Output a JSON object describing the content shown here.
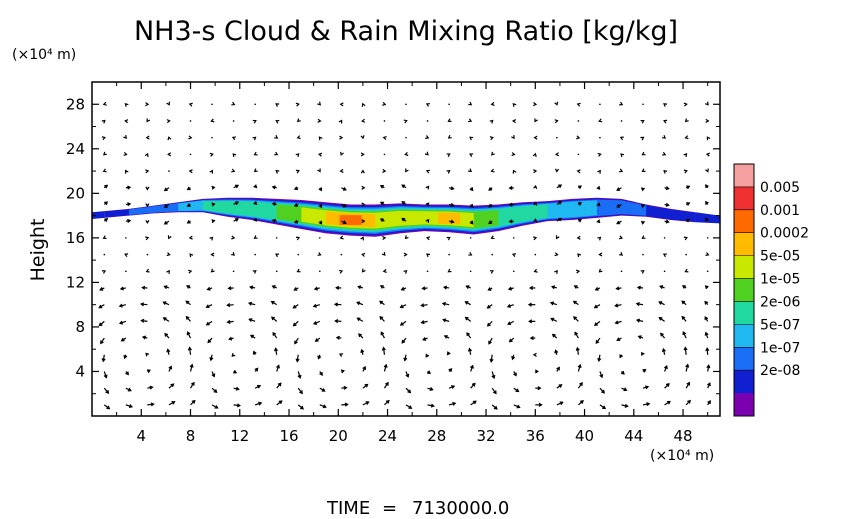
{
  "chart_data": {
    "type": "heatmap",
    "title": "NH3-s Cloud & Rain Mixing Ratio [kg/kg]",
    "ylabel": "Height",
    "x_unit": "(×10⁴ m)",
    "y_unit": "(×10⁴ m)",
    "xlim": [
      0,
      51
    ],
    "ylim": [
      0,
      30
    ],
    "x_ticks": [
      4,
      8,
      12,
      16,
      20,
      24,
      28,
      32,
      36,
      40,
      44,
      48
    ],
    "y_ticks": [
      4,
      8,
      12,
      16,
      20,
      24,
      28
    ],
    "colorbar": {
      "levels": [
        "0.005",
        "0.001",
        "0.0002",
        "5e-05",
        "1e-05",
        "2e-06",
        "5e-07",
        "1e-07",
        "2e-08"
      ],
      "colors": [
        "#f4a0a0",
        "#ee3030",
        "#ff6a00",
        "#ffbb00",
        "#c8e800",
        "#50d020",
        "#20d8a0",
        "#20b8f0",
        "#1a6ef5",
        "#1020d0",
        "#7a00b0"
      ]
    },
    "cloud_layer": {
      "x": [
        1,
        3,
        5,
        7,
        9,
        11,
        13,
        15,
        17,
        19,
        21,
        23,
        25,
        27,
        29,
        31,
        33,
        35,
        37,
        39,
        41,
        43,
        45,
        47,
        49
      ],
      "base_height": [
        17.8,
        18.0,
        18.2,
        18.3,
        18.3,
        17.9,
        17.6,
        17.2,
        16.8,
        16.4,
        16.2,
        16.1,
        16.4,
        16.6,
        16.5,
        16.3,
        16.6,
        17.1,
        17.5,
        17.6,
        17.8,
        18.0,
        17.9,
        17.6,
        17.4
      ],
      "top_height": [
        18.4,
        18.6,
        18.9,
        19.2,
        19.5,
        19.6,
        19.6,
        19.5,
        19.4,
        19.2,
        19.0,
        19.0,
        19.1,
        19.0,
        19.0,
        18.9,
        19.0,
        19.2,
        19.3,
        19.5,
        19.6,
        19.5,
        19.0,
        18.6,
        18.3
      ],
      "max_level_index": [
        9,
        8,
        8,
        7,
        6,
        6,
        6,
        5,
        4,
        3,
        2,
        3,
        4,
        4,
        3,
        4,
        5,
        6,
        6,
        7,
        7,
        8,
        8,
        9,
        9
      ]
    },
    "vectors": "wind field arrows overlaid on grid"
  },
  "footer": {
    "time_label": "TIME",
    "time_value": "7130000.0"
  }
}
